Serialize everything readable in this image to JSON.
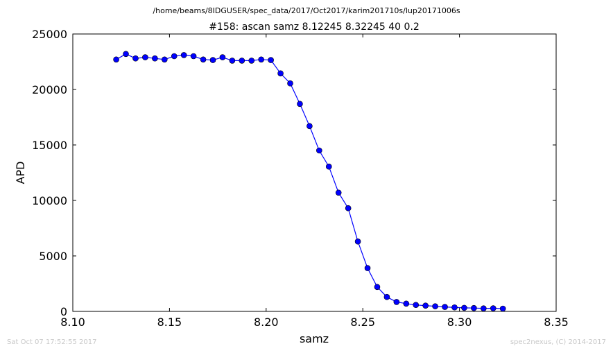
{
  "chart_data": {
    "type": "line",
    "suptitle": "/home/beams/8IDGUSER/spec_data/2017/Oct2017/karim201710s/lup20171006s",
    "title": "#158: ascan  samz 8.12245 8.32245  40 0.2",
    "xlabel": "samz",
    "ylabel": "APD",
    "xlim": [
      8.1,
      8.35
    ],
    "ylim": [
      0,
      25000
    ],
    "xticks": [
      "8.10",
      "8.15",
      "8.20",
      "8.25",
      "8.30",
      "8.35"
    ],
    "yticks": [
      "0",
      "5000",
      "10000",
      "15000",
      "20000",
      "25000"
    ],
    "grid": false,
    "series": [
      {
        "color": "#0000ff",
        "marker": "circle",
        "x": [
          8.12245,
          8.12745,
          8.13245,
          8.13745,
          8.14245,
          8.14745,
          8.15245,
          8.15745,
          8.16245,
          8.16745,
          8.17245,
          8.17745,
          8.18245,
          8.18745,
          8.19245,
          8.19745,
          8.20245,
          8.20745,
          8.21245,
          8.21745,
          8.22245,
          8.22745,
          8.23245,
          8.23745,
          8.24245,
          8.24745,
          8.25245,
          8.25745,
          8.26245,
          8.26745,
          8.27245,
          8.27745,
          8.28245,
          8.28745,
          8.29245,
          8.29745,
          8.30245,
          8.30745,
          8.31245,
          8.31745,
          8.32245
        ],
        "y": [
          22700,
          23200,
          22800,
          22900,
          22800,
          22700,
          23000,
          23100,
          23000,
          22700,
          22650,
          22900,
          22600,
          22600,
          22600,
          22700,
          22650,
          21450,
          20550,
          18700,
          16700,
          14500,
          13050,
          10700,
          9300,
          6300,
          3900,
          2200,
          1300,
          850,
          700,
          580,
          520,
          460,
          400,
          360,
          320,
          300,
          270,
          280,
          250
        ]
      }
    ]
  },
  "footer": {
    "timestamp": "Sat Oct 07 17:52:55 2017",
    "credit": "spec2nexus, (C) 2014-2017"
  }
}
